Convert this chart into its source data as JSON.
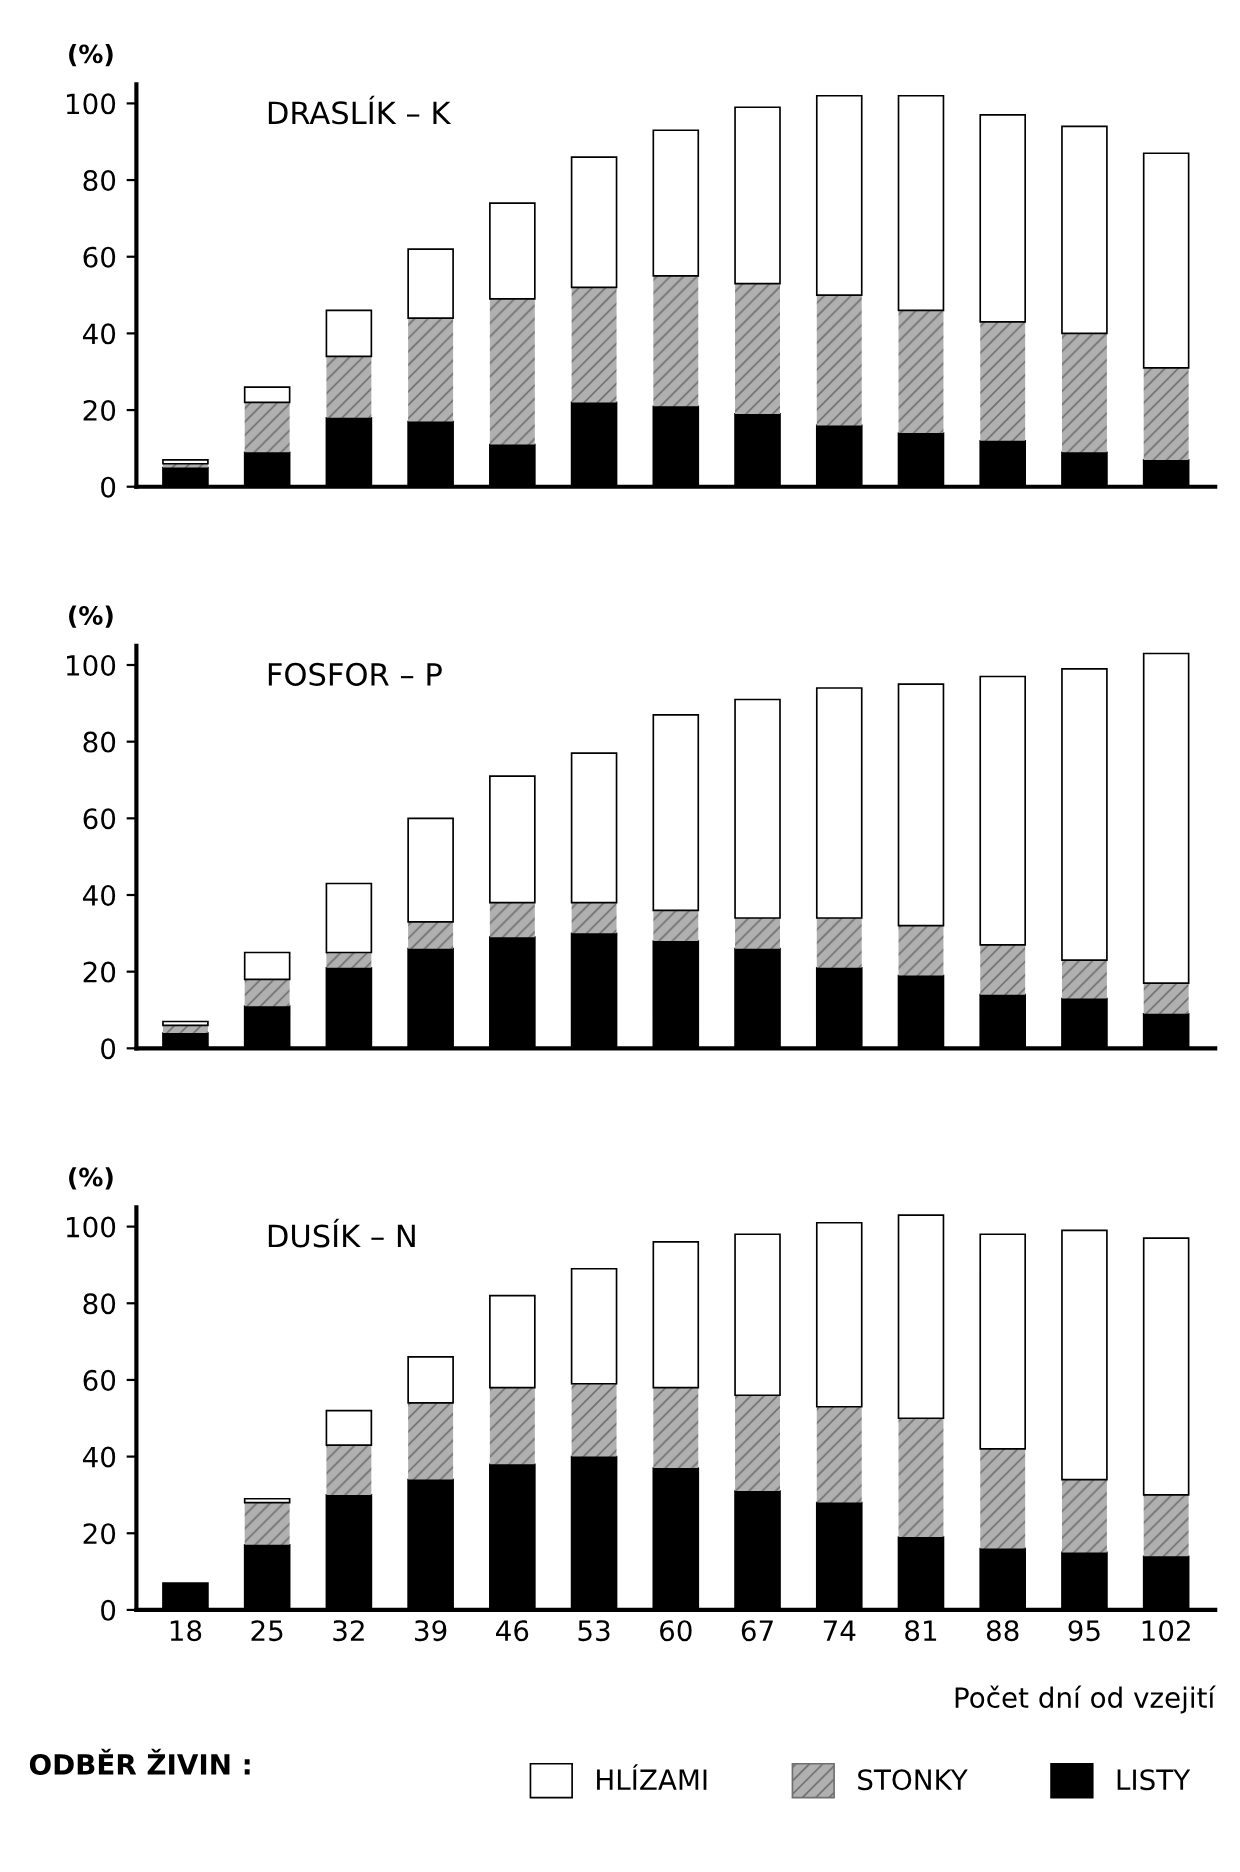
{
  "chart_data": [
    {
      "type": "bar",
      "title": "DRASLÍK – K",
      "ylabel": "(%)",
      "stacked": true,
      "tick_labels": "y",
      "legend": false,
      "categories": [
        "18",
        "25",
        "32",
        "39",
        "46",
        "53",
        "60",
        "67",
        "74",
        "81",
        "88",
        "95",
        "102"
      ],
      "ylim": [
        0,
        105
      ],
      "yticks": [
        0,
        20,
        40,
        60,
        80,
        100
      ],
      "series": [
        {
          "color": "#000000",
          "values": [
            5,
            9,
            18,
            17,
            11,
            22,
            21,
            19,
            16,
            14,
            12,
            9,
            7
          ]
        },
        {
          "color": "#b0b0b0",
          "values": [
            1,
            13,
            16,
            27,
            38,
            30,
            34,
            34,
            34,
            32,
            31,
            31,
            24
          ]
        },
        {
          "color": "#ffffff",
          "values": [
            1,
            4,
            12,
            18,
            25,
            34,
            38,
            46,
            52,
            56,
            54,
            54,
            56
          ]
        }
      ]
    },
    {
      "type": "bar",
      "title": "FOSFOR – P",
      "ylabel": "(%)",
      "stacked": true,
      "tick_labels": "y",
      "legend": false,
      "categories": [
        "18",
        "25",
        "32",
        "39",
        "46",
        "53",
        "60",
        "67",
        "74",
        "81",
        "88",
        "95",
        "102"
      ],
      "ylim": [
        0,
        105
      ],
      "yticks": [
        0,
        20,
        40,
        60,
        80,
        100
      ],
      "series": [
        {
          "color": "#000000",
          "values": [
            4,
            11,
            21,
            26,
            29,
            30,
            28,
            26,
            21,
            19,
            14,
            13,
            9
          ]
        },
        {
          "color": "#b0b0b0",
          "values": [
            2,
            7,
            4,
            7,
            9,
            8,
            8,
            8,
            13,
            13,
            13,
            10,
            8
          ]
        },
        {
          "color": "#ffffff",
          "values": [
            1,
            7,
            18,
            27,
            33,
            39,
            51,
            57,
            60,
            63,
            70,
            76,
            86
          ]
        }
      ]
    },
    {
      "type": "bar",
      "title": "DUSÍK – N",
      "ylabel": "(%)",
      "xlabel": "Počet dní od vzejití",
      "stacked": true,
      "legend": "bottom",
      "legend_title": "ODBĚR ŽIVIN :",
      "categories": [
        "18",
        "25",
        "32",
        "39",
        "46",
        "53",
        "60",
        "67",
        "74",
        "81",
        "88",
        "95",
        "102"
      ],
      "ylim": [
        0,
        105
      ],
      "yticks": [
        0,
        20,
        40,
        60,
        80,
        100
      ],
      "series": [
        {
          "name": "LISTY",
          "color": "#000000",
          "values": [
            7,
            17,
            30,
            34,
            38,
            40,
            37,
            31,
            28,
            19,
            16,
            15,
            14
          ]
        },
        {
          "name": "STONKY",
          "color": "#b0b0b0",
          "values": [
            0,
            11,
            13,
            20,
            20,
            19,
            21,
            25,
            25,
            31,
            26,
            19,
            16
          ]
        },
        {
          "name": "HLÍZAMI",
          "color": "#ffffff",
          "values": [
            0,
            1,
            9,
            12,
            24,
            30,
            38,
            42,
            48,
            53,
            56,
            65,
            67
          ]
        }
      ]
    }
  ]
}
